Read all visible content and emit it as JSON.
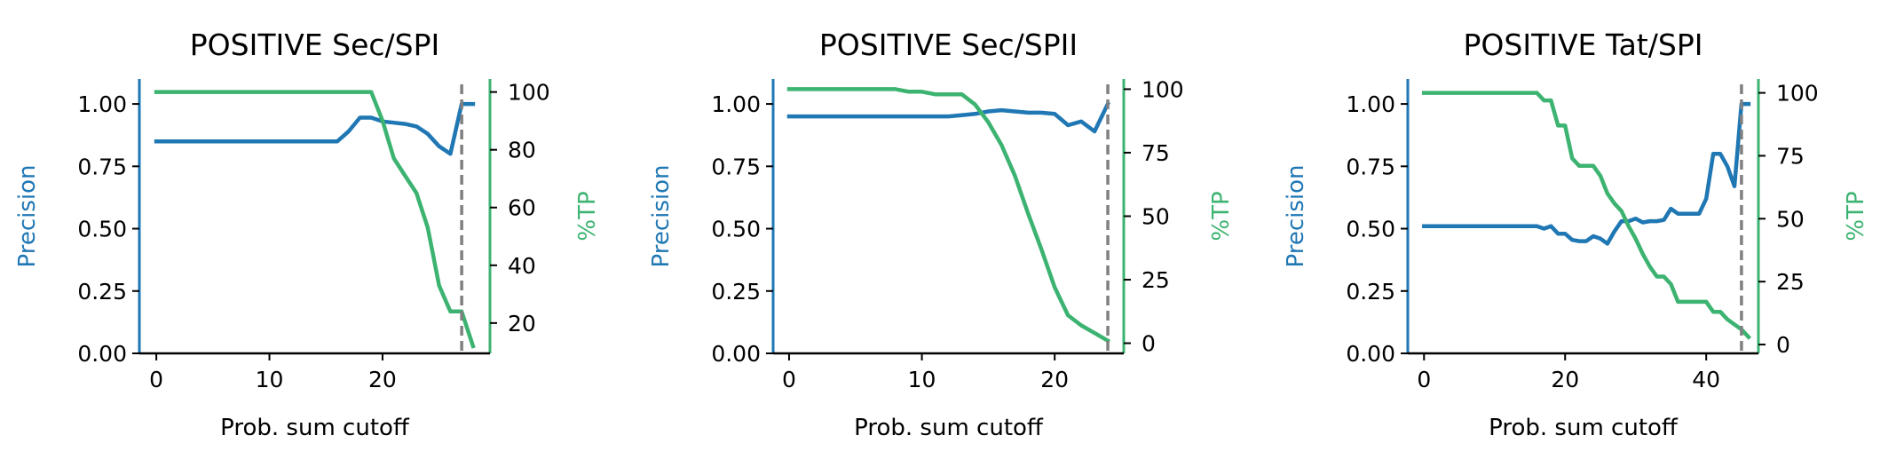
{
  "colors": {
    "precision": "#1f77b4",
    "tp": "#3cb371",
    "cutoff": "#808080",
    "axis": "#000000"
  },
  "chart_data": [
    {
      "type": "line",
      "title": "POSITIVE Sec/SPI",
      "xlabel": "Prob. sum cutoff",
      "ylabel": "Precision",
      "ylabel_right": "%TP",
      "xlim": [
        -1.5,
        29.5
      ],
      "ylim": [
        0,
        1.1
      ],
      "ylim_right": [
        9.5,
        104.5
      ],
      "xticks": [
        0,
        10,
        20
      ],
      "yticks": [
        0.0,
        0.25,
        0.5,
        0.75,
        1.0
      ],
      "yticks_right": [
        20,
        40,
        60,
        80,
        100
      ],
      "cutoff_line": 27,
      "series": [
        {
          "name": "Precision",
          "axis": "left",
          "x": [
            0,
            16,
            17,
            18,
            19,
            20,
            21,
            22,
            23,
            24,
            25,
            26,
            27,
            28
          ],
          "y": [
            0.85,
            0.85,
            0.89,
            0.945,
            0.945,
            0.93,
            0.925,
            0.92,
            0.91,
            0.88,
            0.83,
            0.8,
            1.0,
            1.0
          ]
        },
        {
          "name": "%TP",
          "axis": "right",
          "x": [
            0,
            19,
            20,
            21,
            22,
            23,
            24,
            25,
            26,
            27,
            28
          ],
          "y": [
            100,
            100,
            90,
            77,
            71,
            65,
            53,
            33,
            24,
            24,
            12
          ]
        }
      ]
    },
    {
      "type": "line",
      "title": "POSITIVE Sec/SPII",
      "xlabel": "Prob. sum cutoff",
      "ylabel": "Precision",
      "ylabel_right": "%TP",
      "xlim": [
        -1.2,
        25.2
      ],
      "ylim": [
        0,
        1.1
      ],
      "ylim_right": [
        -4,
        104
      ],
      "xticks": [
        0,
        10,
        20
      ],
      "yticks": [
        0.0,
        0.25,
        0.5,
        0.75,
        1.0
      ],
      "yticks_right": [
        0,
        25,
        50,
        75,
        100
      ],
      "cutoff_line": 24,
      "series": [
        {
          "name": "Precision",
          "axis": "left",
          "x": [
            0,
            12,
            13,
            14,
            15,
            16,
            17,
            18,
            19,
            20,
            21,
            22,
            23,
            24
          ],
          "y": [
            0.95,
            0.95,
            0.955,
            0.96,
            0.97,
            0.975,
            0.97,
            0.965,
            0.965,
            0.96,
            0.915,
            0.93,
            0.89,
            1.0
          ]
        },
        {
          "name": "%TP",
          "axis": "right",
          "x": [
            0,
            8,
            9,
            10,
            11,
            12,
            13,
            14,
            15,
            16,
            17,
            18,
            19,
            20,
            21,
            22,
            23,
            24
          ],
          "y": [
            100,
            100,
            99,
            99,
            98,
            98,
            98,
            94,
            87,
            78,
            66,
            51,
            37,
            22,
            11,
            7,
            4,
            1
          ]
        }
      ]
    },
    {
      "type": "line",
      "title": "POSITIVE Tat/SPI",
      "xlabel": "Prob. sum cutoff",
      "ylabel": "Precision",
      "ylabel_right": "%TP",
      "xlim": [
        -2.3,
        47.4
      ],
      "ylim": [
        0,
        1.1
      ],
      "ylim_right": [
        -3.5,
        105.5
      ],
      "xticks": [
        0,
        20,
        40
      ],
      "yticks": [
        0.0,
        0.25,
        0.5,
        0.75,
        1.0
      ],
      "yticks_right": [
        0,
        25,
        50,
        75,
        100
      ],
      "cutoff_line": 45,
      "series": [
        {
          "name": "Precision",
          "axis": "left",
          "x": [
            0,
            16,
            17,
            18,
            19,
            20,
            21,
            22,
            23,
            24,
            25,
            26,
            27,
            28,
            29,
            30,
            31,
            32,
            33,
            34,
            35,
            36,
            37,
            38,
            39,
            40,
            41,
            42,
            43,
            44,
            45,
            46
          ],
          "y": [
            0.51,
            0.51,
            0.5,
            0.51,
            0.48,
            0.48,
            0.455,
            0.45,
            0.45,
            0.47,
            0.46,
            0.44,
            0.49,
            0.53,
            0.53,
            0.54,
            0.525,
            0.53,
            0.53,
            0.535,
            0.58,
            0.56,
            0.56,
            0.56,
            0.56,
            0.62,
            0.8,
            0.8,
            0.75,
            0.67,
            1.0,
            1.0
          ]
        },
        {
          "name": "%TP",
          "axis": "right",
          "x": [
            0,
            16,
            17,
            18,
            19,
            20,
            21,
            22,
            23,
            24,
            25,
            26,
            27,
            28,
            29,
            30,
            31,
            32,
            33,
            34,
            35,
            36,
            37,
            38,
            39,
            40,
            41,
            42,
            43,
            44,
            45,
            46
          ],
          "y": [
            100,
            100,
            97,
            97,
            87,
            87,
            74,
            71,
            71,
            71,
            67,
            60,
            56,
            53,
            47,
            42,
            36,
            31,
            27,
            27,
            24,
            17,
            17,
            17,
            17,
            17,
            13,
            13,
            10,
            8,
            6,
            3
          ]
        }
      ]
    }
  ]
}
